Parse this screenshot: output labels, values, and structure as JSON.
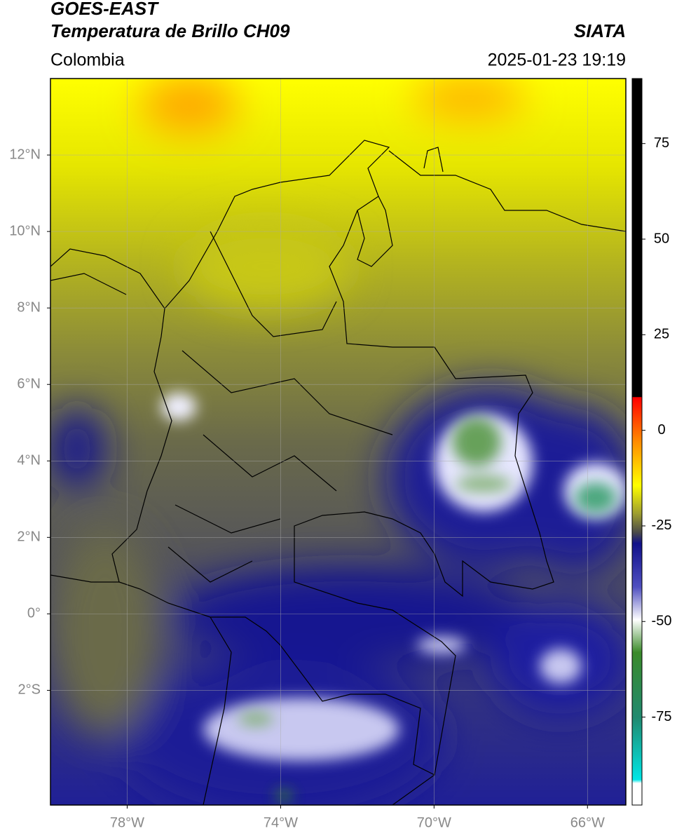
{
  "header": {
    "title": "GOES-EAST",
    "subtitle": "Temperatura de Brillo CH09",
    "region": "Colombia",
    "source": "SIATA",
    "datetime": "2025-01-23 19:19"
  },
  "map": {
    "xlim": [
      -80,
      -65
    ],
    "ylim": [
      -5,
      14
    ],
    "xticks": [
      {
        "value": -78,
        "label": "78°W"
      },
      {
        "value": -74,
        "label": "74°W"
      },
      {
        "value": -70,
        "label": "70°W"
      },
      {
        "value": -66,
        "label": "66°W"
      }
    ],
    "yticks": [
      {
        "value": 12,
        "label": "12°N"
      },
      {
        "value": 10,
        "label": "10°N"
      },
      {
        "value": 8,
        "label": "8°N"
      },
      {
        "value": 6,
        "label": "6°N"
      },
      {
        "value": 4,
        "label": "4°N"
      },
      {
        "value": 2,
        "label": "2°N"
      },
      {
        "value": 0,
        "label": "0°"
      },
      {
        "value": -2,
        "label": "2°S"
      }
    ],
    "grid": true
  },
  "colorbar": {
    "lim": [
      -98,
      92
    ],
    "ticks": [
      75,
      50,
      25,
      0,
      -25,
      -50,
      -75
    ]
  }
}
